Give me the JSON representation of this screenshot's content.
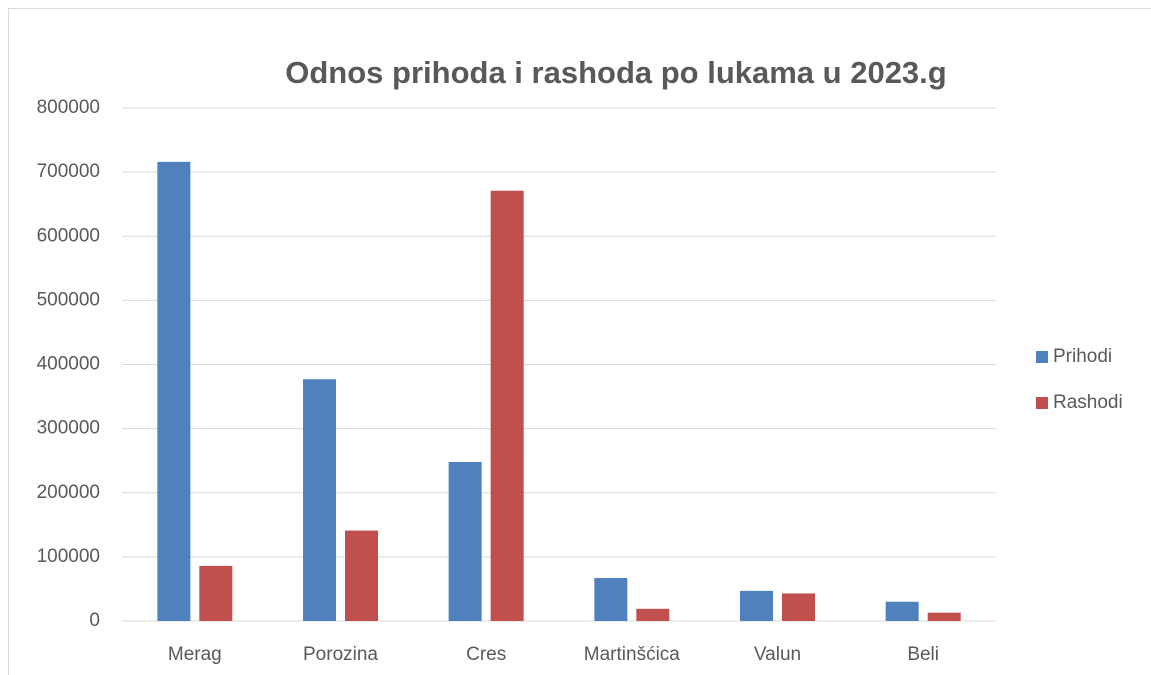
{
  "chart_data": {
    "type": "bar",
    "title": "Odnos prihoda i rashoda po lukama u 2023.g",
    "categories": [
      "Merag",
      "Porozina",
      "Cres",
      "Martinšćica",
      "Valun",
      "Beli"
    ],
    "series": [
      {
        "name": "Prihodi",
        "color": "#4f81bd",
        "values": [
          716000,
          377000,
          248000,
          67000,
          47000,
          30000
        ]
      },
      {
        "name": "Rashodi",
        "color": "#c0504d",
        "values": [
          86000,
          141000,
          671000,
          19000,
          43000,
          13000
        ]
      }
    ],
    "ylim": [
      0,
      800000
    ],
    "yticks": [
      0,
      100000,
      200000,
      300000,
      400000,
      500000,
      600000,
      700000,
      800000
    ],
    "grid": true,
    "legend": "right"
  }
}
